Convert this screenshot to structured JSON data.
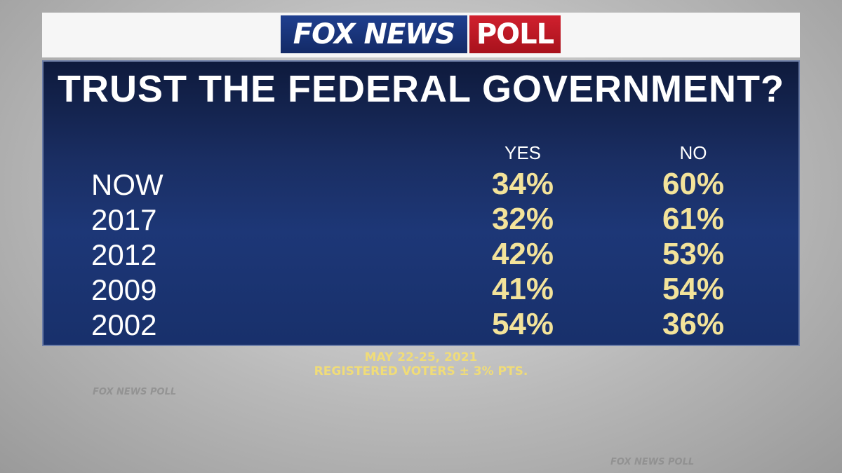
{
  "header": {
    "logo_left": "FOX NEWS",
    "logo_right": "POLL"
  },
  "title": "TRUST THE FEDERAL GOVERNMENT?",
  "table": {
    "columns": [
      "YES",
      "NO"
    ],
    "rows": [
      {
        "label": "NOW",
        "values": [
          "34%",
          "60%"
        ]
      },
      {
        "label": "2017",
        "values": [
          "32%",
          "61%"
        ]
      },
      {
        "label": "2012",
        "values": [
          "42%",
          "53%"
        ]
      },
      {
        "label": "2009",
        "values": [
          "41%",
          "54%"
        ]
      },
      {
        "label": "2002",
        "values": [
          "54%",
          "36%"
        ]
      }
    ]
  },
  "footer": {
    "dates": "MAY 22-25, 2021",
    "note": "REGISTERED VOTERS ± 3% PTS."
  },
  "watermark": "FOX NEWS POLL"
}
